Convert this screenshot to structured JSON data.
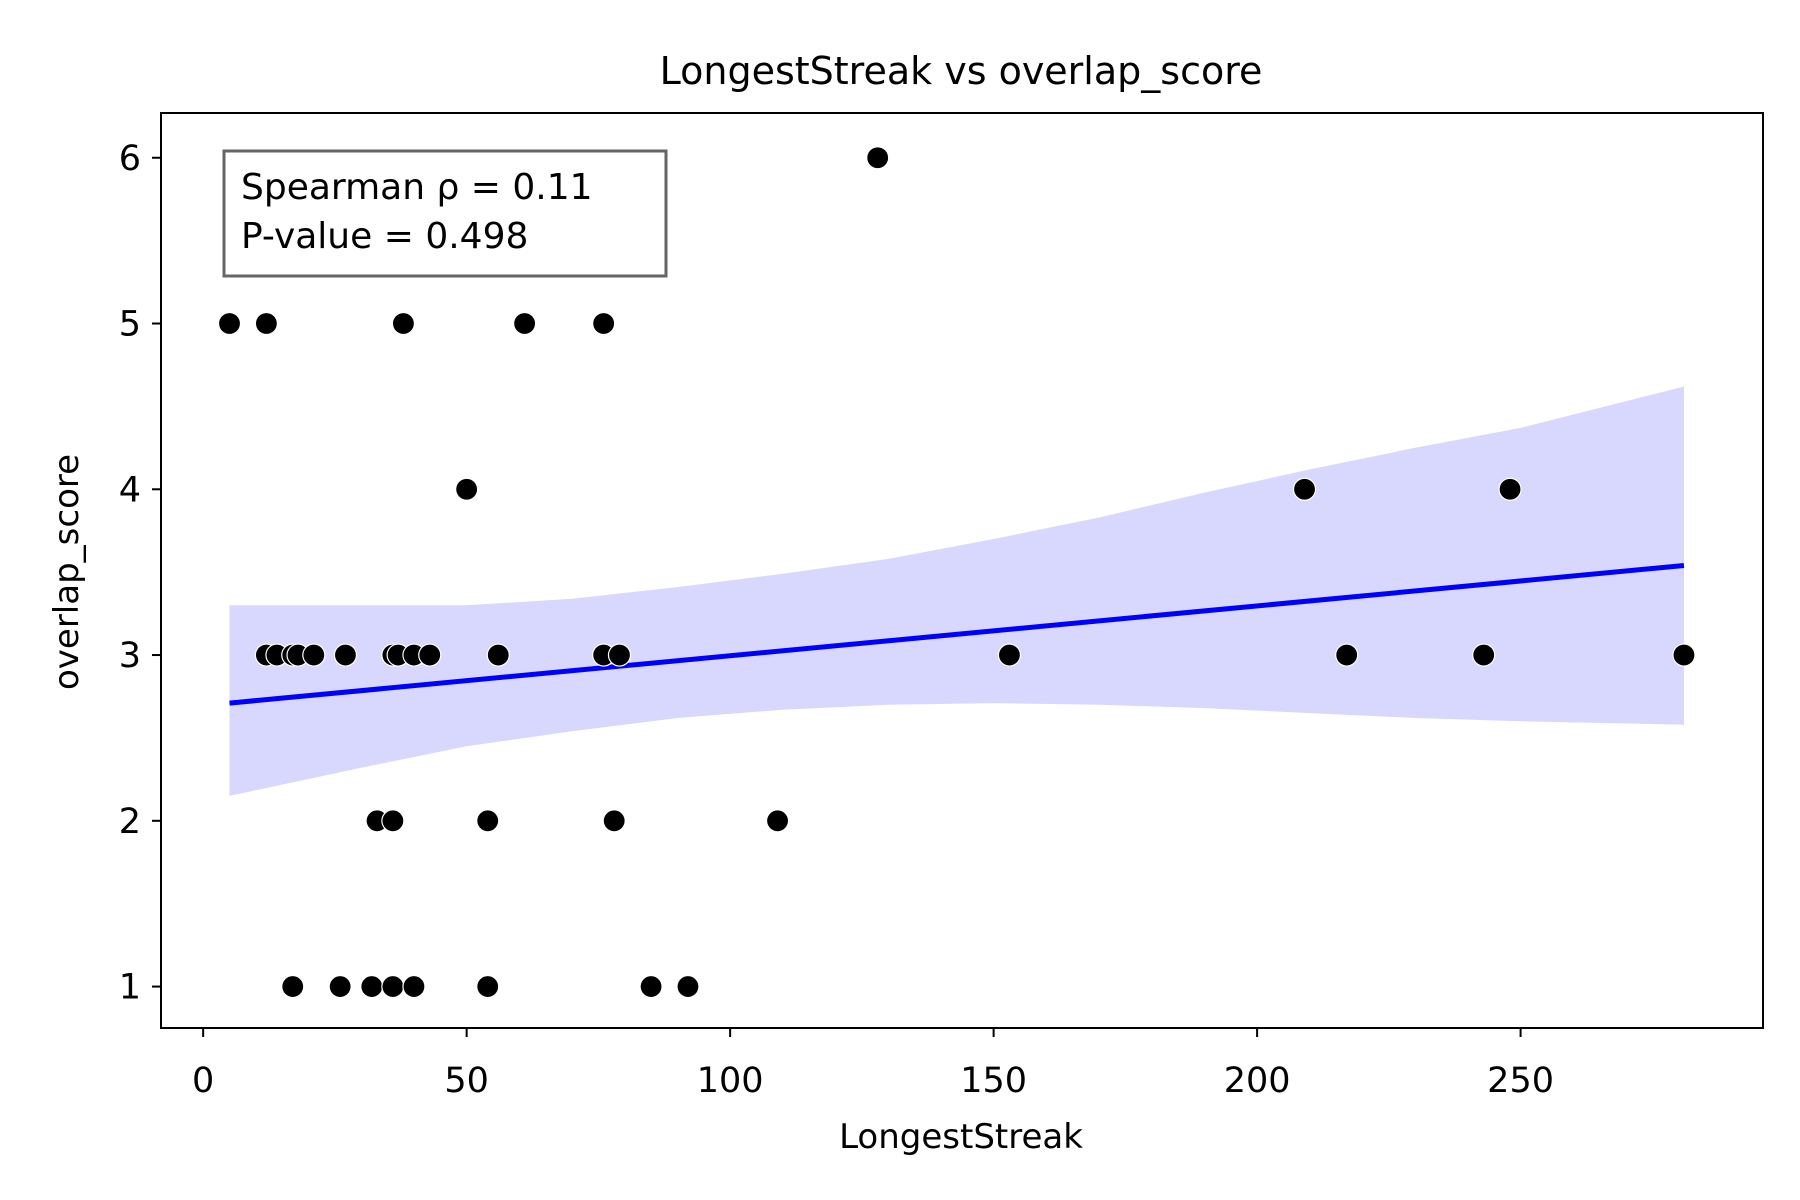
{
  "chart_data": {
    "type": "scatter",
    "title": "LongestStreak vs overlap_score",
    "xlabel": "LongestStreak",
    "ylabel": "overlap_score",
    "xlim": [
      -8,
      296
    ],
    "ylim": [
      0.75,
      6.27
    ],
    "x_ticks": [
      0,
      50,
      100,
      150,
      200,
      250
    ],
    "y_ticks": [
      1,
      2,
      3,
      4,
      5,
      6
    ],
    "grid": false,
    "points": [
      {
        "x": 5,
        "y": 5
      },
      {
        "x": 12,
        "y": 5
      },
      {
        "x": 38,
        "y": 5
      },
      {
        "x": 61,
        "y": 5
      },
      {
        "x": 76,
        "y": 5
      },
      {
        "x": 128,
        "y": 6
      },
      {
        "x": 50,
        "y": 4
      },
      {
        "x": 209,
        "y": 4
      },
      {
        "x": 248,
        "y": 4
      },
      {
        "x": 12,
        "y": 3
      },
      {
        "x": 14,
        "y": 3
      },
      {
        "x": 17,
        "y": 3
      },
      {
        "x": 18,
        "y": 3
      },
      {
        "x": 21,
        "y": 3
      },
      {
        "x": 27,
        "y": 3
      },
      {
        "x": 36,
        "y": 3
      },
      {
        "x": 37,
        "y": 3
      },
      {
        "x": 40,
        "y": 3
      },
      {
        "x": 43,
        "y": 3
      },
      {
        "x": 56,
        "y": 3
      },
      {
        "x": 76,
        "y": 3
      },
      {
        "x": 79,
        "y": 3
      },
      {
        "x": 153,
        "y": 3
      },
      {
        "x": 217,
        "y": 3
      },
      {
        "x": 243,
        "y": 3
      },
      {
        "x": 281,
        "y": 3
      },
      {
        "x": 33,
        "y": 2
      },
      {
        "x": 36,
        "y": 2
      },
      {
        "x": 54,
        "y": 2
      },
      {
        "x": 78,
        "y": 2
      },
      {
        "x": 109,
        "y": 2
      },
      {
        "x": 17,
        "y": 1
      },
      {
        "x": 26,
        "y": 1
      },
      {
        "x": 32,
        "y": 1
      },
      {
        "x": 36,
        "y": 1
      },
      {
        "x": 40,
        "y": 1
      },
      {
        "x": 54,
        "y": 1
      },
      {
        "x": 85,
        "y": 1
      },
      {
        "x": 92,
        "y": 1
      }
    ],
    "regression": {
      "x": [
        5,
        281
      ],
      "y": [
        2.71,
        3.54
      ],
      "color": "#0000ff"
    },
    "confidence_band": {
      "x": [
        5,
        30,
        50,
        70,
        90,
        110,
        130,
        150,
        170,
        190,
        210,
        230,
        250,
        281
      ],
      "upper": [
        3.3,
        3.3,
        3.3,
        3.34,
        3.41,
        3.49,
        3.58,
        3.7,
        3.83,
        3.98,
        4.12,
        4.25,
        4.37,
        4.62
      ],
      "lower": [
        2.15,
        2.32,
        2.45,
        2.54,
        2.62,
        2.67,
        2.7,
        2.71,
        2.7,
        2.68,
        2.65,
        2.62,
        2.6,
        2.58
      ],
      "color": "#d8d8ff"
    },
    "annotation": {
      "line1": "Spearman ρ = 0.11",
      "line2": "P-value = 0.498"
    },
    "colors": {
      "points": "#000000",
      "regression_line": "#0000ff",
      "band": "#d8d8ff"
    }
  }
}
